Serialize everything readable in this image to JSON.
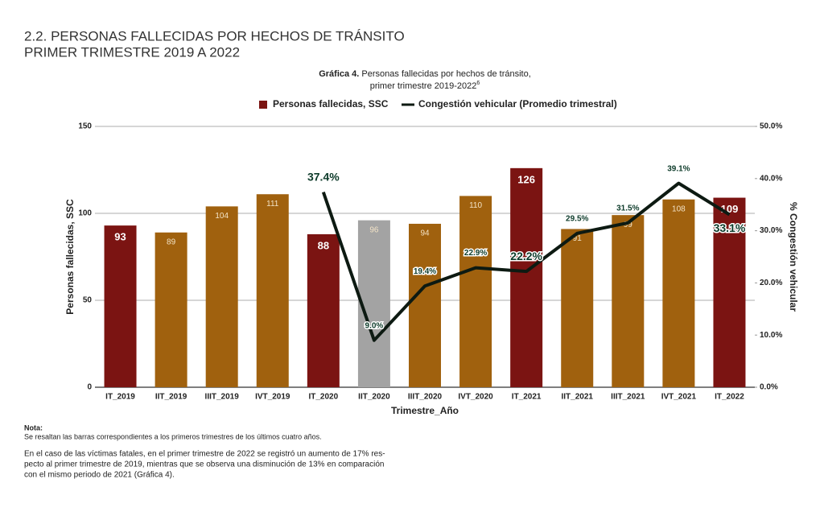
{
  "heading": [
    "2.2. PERSONAS FALLECIDAS POR HECHOS DE TRÁNSITO",
    "PRIMER TRIMESTRE 2019 A 2022"
  ],
  "chart_data": {
    "type": "bar",
    "title_bold": "Gráfica 4.",
    "title": "Personas fallecidas por hechos de tránsito,",
    "subtitle": "primer trimestre 2019-2022",
    "subtitle_note_mark": "6",
    "categories": [
      "IT_2019",
      "IIT_2019",
      "IIIT_2019",
      "IVT_2019",
      "IT_2020",
      "IIT_2020",
      "IIIT_2020",
      "IVT_2020",
      "IT_2021",
      "IIT_2021",
      "IIIT_2021",
      "IVT_2021",
      "IT_2022"
    ],
    "series": [
      {
        "name": "Personas fallecidas, SSC",
        "type": "bar",
        "color": "#7b1412",
        "colors": [
          "#7b1412",
          "#a0610e",
          "#a0610e",
          "#a0610e",
          "#7b1412",
          "#a3a3a3",
          "#a0610e",
          "#a0610e",
          "#7b1412",
          "#a0610e",
          "#a0610e",
          "#a0610e",
          "#7b1412"
        ],
        "values": [
          93,
          89,
          104,
          111,
          88,
          96,
          94,
          110,
          126,
          91,
          99,
          108,
          109
        ]
      },
      {
        "name": "Congestión vehicular (Promedio trimestral)",
        "type": "line",
        "axis": "y2",
        "color": "#0d1a12",
        "values": [
          null,
          null,
          null,
          null,
          37.4,
          9.0,
          19.4,
          22.9,
          22.2,
          29.5,
          31.5,
          39.1,
          33.1
        ],
        "value_labels": [
          null,
          null,
          null,
          null,
          "37.4%",
          "9.0%",
          "19.4%",
          "22.9%",
          "22.2%",
          "29.5%",
          "31.5%",
          "39.1%",
          "33.1%"
        ]
      }
    ],
    "ylim": [
      0,
      150
    ],
    "yticks": [
      0,
      50,
      100,
      150
    ],
    "y2lim": [
      0,
      50
    ],
    "y2ticks": [
      {
        "value": 0,
        "label": "0.0%"
      },
      {
        "value": 10,
        "label": "10.0%"
      },
      {
        "value": 20,
        "label": "20.0%"
      },
      {
        "value": 30,
        "label": "30.0%"
      },
      {
        "value": 40,
        "label": "40.0%"
      },
      {
        "value": 50,
        "label": "50.0%"
      }
    ],
    "ylabel": "Personas fallecidas, SSC",
    "y2label": "% Congestión vehicular",
    "xlabel": "Trimestre_Año",
    "grid": true,
    "legend": "top"
  },
  "note": {
    "title": "Nota:",
    "text": "Se resaltan las barras correspondientes a los primeros trimestres de los últimos cuatro años."
  },
  "paragraph": [
    "En el caso de las víctimas fatales, en el primer trimestre de 2022 se registró un aumento de 17% res-",
    "pecto al primer trimestre de 2019, mientras que se observa una disminución de 13% en comparación",
    "con el mismo periodo de 2021 (Gráfica 4)."
  ]
}
